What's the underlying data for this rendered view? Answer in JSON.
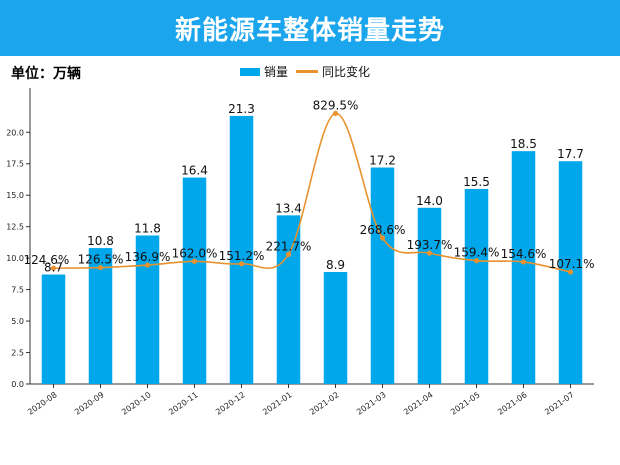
{
  "header": {
    "title": "新能源车整体销量走势"
  },
  "unit_label": "单位：万辆",
  "colors": {
    "banner": "#1aa5ec",
    "bar": "#00a7ea",
    "line": "#e8922f",
    "axis": "#333333"
  },
  "chart_data": {
    "type": "bar",
    "title": "新能源车整体销量走势",
    "categories": [
      "2020-08",
      "2020-09",
      "2020-10",
      "2020-11",
      "2020-12",
      "2021-01",
      "2021-02",
      "2021-03",
      "2021-04",
      "2021-05",
      "2021-06",
      "2021-07"
    ],
    "series": [
      {
        "name": "销量",
        "type": "bar",
        "values": [
          8.7,
          10.8,
          11.8,
          16.4,
          21.3,
          13.4,
          8.9,
          17.2,
          14.0,
          15.5,
          18.5,
          17.7
        ],
        "labels": [
          "8.7",
          "10.8",
          "11.8",
          "16.4",
          "21.3",
          "13.4",
          "8.9",
          "17.2",
          "14.0",
          "15.5",
          "18.5",
          "17.7"
        ]
      },
      {
        "name": "同比变化",
        "type": "line",
        "values": [
          124.6,
          126.5,
          136.9,
          162.0,
          151.2,
          221.7,
          829.5,
          268.6,
          193.7,
          159.4,
          154.6,
          107.1
        ],
        "labels": [
          "124.6%",
          "126.5%",
          "136.9%",
          "162.0%",
          "151.2%",
          "221.7%",
          "829.5%",
          "268.6%",
          "193.7%",
          "159.4%",
          "154.6%",
          "107.1%"
        ]
      }
    ],
    "yticks": [
      "0.0",
      "2.5",
      "5.0",
      "7.5",
      "10.0",
      "12.5",
      "15.0",
      "17.5",
      "20.0"
    ],
    "ylim": [
      0,
      23.2
    ],
    "line_plot_values": [
      9.2,
      9.25,
      9.45,
      9.75,
      9.55,
      10.3,
      21.5,
      11.6,
      10.4,
      9.8,
      9.7,
      8.9
    ],
    "xlabel": "",
    "ylabel": "",
    "legend": "top-center"
  }
}
